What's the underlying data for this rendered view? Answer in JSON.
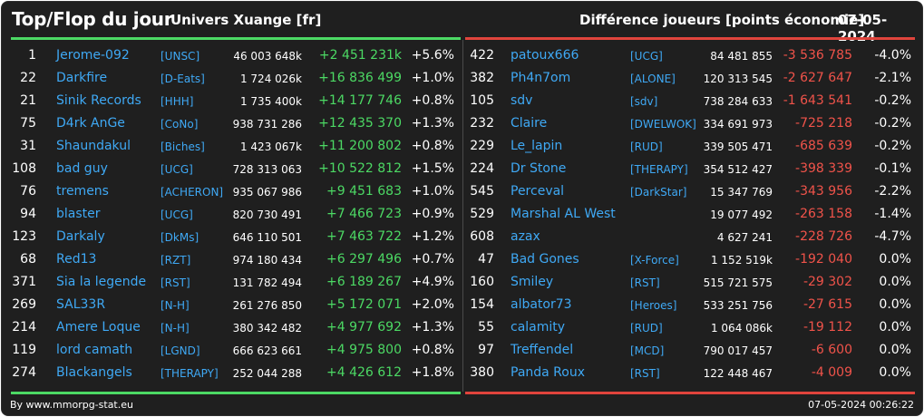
{
  "header": {
    "title": "Top/Flop du jour",
    "server": "Univers Xuange [fr]",
    "metric": "Différence joueurs [points économie]",
    "date": "07-05-2024"
  },
  "colors": {
    "background": "#1f1f1f",
    "positive": "#4cd964",
    "negative": "#f0534a",
    "link": "#3fa9f5"
  },
  "top": [
    {
      "rank": "1",
      "name": "Jerome-092",
      "tag": "[UNSC]",
      "total": "46 003 648k",
      "diff": "+2 451 231k",
      "pct": "+5.6%"
    },
    {
      "rank": "22",
      "name": "Darkfire",
      "tag": "[D-Eats]",
      "total": "1 724 026k",
      "diff": "+16 836 499",
      "pct": "+1.0%"
    },
    {
      "rank": "21",
      "name": "Sinik Records",
      "tag": "[HHH]",
      "total": "1 735 400k",
      "diff": "+14 177 746",
      "pct": "+0.8%"
    },
    {
      "rank": "75",
      "name": "D4rk AnGe",
      "tag": "[CoNo]",
      "total": "938 731 286",
      "diff": "+12 435 370",
      "pct": "+1.3%"
    },
    {
      "rank": "31",
      "name": "Shaundakul",
      "tag": "[Biches]",
      "total": "1 423 067k",
      "diff": "+11 200 802",
      "pct": "+0.8%"
    },
    {
      "rank": "108",
      "name": "bad guy",
      "tag": "[UCG]",
      "total": "728 313 063",
      "diff": "+10 522 812",
      "pct": "+1.5%"
    },
    {
      "rank": "76",
      "name": "tremens",
      "tag": "[ACHERON]",
      "total": "935 067 986",
      "diff": "+9 451 683",
      "pct": "+1.0%"
    },
    {
      "rank": "94",
      "name": "blaster",
      "tag": "[UCG]",
      "total": "820 730 491",
      "diff": "+7 466 723",
      "pct": "+0.9%"
    },
    {
      "rank": "123",
      "name": "Darkaly",
      "tag": "[DkMs]",
      "total": "646 110 501",
      "diff": "+7 463 722",
      "pct": "+1.2%"
    },
    {
      "rank": "68",
      "name": "Red13",
      "tag": "[RZT]",
      "total": "974 180 434",
      "diff": "+6 297 496",
      "pct": "+0.7%"
    },
    {
      "rank": "371",
      "name": "Sia la legende",
      "tag": "[RST]",
      "total": "131 782 494",
      "diff": "+6 189 267",
      "pct": "+4.9%"
    },
    {
      "rank": "269",
      "name": "SAL33R",
      "tag": "[N-H]",
      "total": "261 276 850",
      "diff": "+5 172 071",
      "pct": "+2.0%"
    },
    {
      "rank": "214",
      "name": "Amere Loque",
      "tag": "[N-H]",
      "total": "380 342 482",
      "diff": "+4 977 692",
      "pct": "+1.3%"
    },
    {
      "rank": "119",
      "name": "lord camath",
      "tag": "[LGND]",
      "total": "666 623 661",
      "diff": "+4 975 800",
      "pct": "+0.8%"
    },
    {
      "rank": "274",
      "name": "Blackangels",
      "tag": "[THERAPY]",
      "total": "252 044 288",
      "diff": "+4 426 612",
      "pct": "+1.8%"
    }
  ],
  "flop": [
    {
      "rank": "422",
      "name": "patoux666",
      "tag": "[UCG]",
      "total": "84 481 855",
      "diff": "-3 536 785",
      "pct": "-4.0%"
    },
    {
      "rank": "382",
      "name": "Ph4n7om",
      "tag": "[ALONE]",
      "total": "120 313 545",
      "diff": "-2 627 647",
      "pct": "-2.1%"
    },
    {
      "rank": "105",
      "name": "sdv",
      "tag": "[sdv]",
      "total": "738 284 633",
      "diff": "-1 643 541",
      "pct": "-0.2%"
    },
    {
      "rank": "232",
      "name": "Claire",
      "tag": "[DWELWOK]",
      "total": "334 691 973",
      "diff": "-725 218",
      "pct": "-0.2%"
    },
    {
      "rank": "229",
      "name": "Le_lapin",
      "tag": "[RUD]",
      "total": "339 505 471",
      "diff": "-685 639",
      "pct": "-0.2%"
    },
    {
      "rank": "224",
      "name": "Dr Stone",
      "tag": "[THERAPY]",
      "total": "354 512 427",
      "diff": "-398 339",
      "pct": "-0.1%"
    },
    {
      "rank": "545",
      "name": "Perceval",
      "tag": "[DarkStar]",
      "total": "15 347 769",
      "diff": "-343 956",
      "pct": "-2.2%"
    },
    {
      "rank": "529",
      "name": "Marshal AL West",
      "tag": "",
      "total": "19 077 492",
      "diff": "-263 158",
      "pct": "-1.4%"
    },
    {
      "rank": "608",
      "name": "azax",
      "tag": "",
      "total": "4 627 241",
      "diff": "-228 726",
      "pct": "-4.7%"
    },
    {
      "rank": "47",
      "name": "Bad Gones",
      "tag": "[X-Force]",
      "total": "1 152 519k",
      "diff": "-192 040",
      "pct": "0.0%"
    },
    {
      "rank": "160",
      "name": "Smiley",
      "tag": "[RST]",
      "total": "515 721 575",
      "diff": "-29 302",
      "pct": "0.0%"
    },
    {
      "rank": "154",
      "name": "albator73",
      "tag": "[Heroes]",
      "total": "533 251 756",
      "diff": "-27 615",
      "pct": "0.0%"
    },
    {
      "rank": "55",
      "name": "calamity",
      "tag": "[RUD]",
      "total": "1 064 086k",
      "diff": "-19 112",
      "pct": "0.0%"
    },
    {
      "rank": "97",
      "name": "Treffendel",
      "tag": "[MCD]",
      "total": "790 017 457",
      "diff": "-6 600",
      "pct": "0.0%"
    },
    {
      "rank": "380",
      "name": "Panda Roux",
      "tag": "[RST]",
      "total": "122 448 467",
      "diff": "-4 009",
      "pct": "0.0%"
    }
  ],
  "footer": {
    "source": "By www.mmorpg-stat.eu",
    "timestamp": "07-05-2024 00:26:22"
  }
}
